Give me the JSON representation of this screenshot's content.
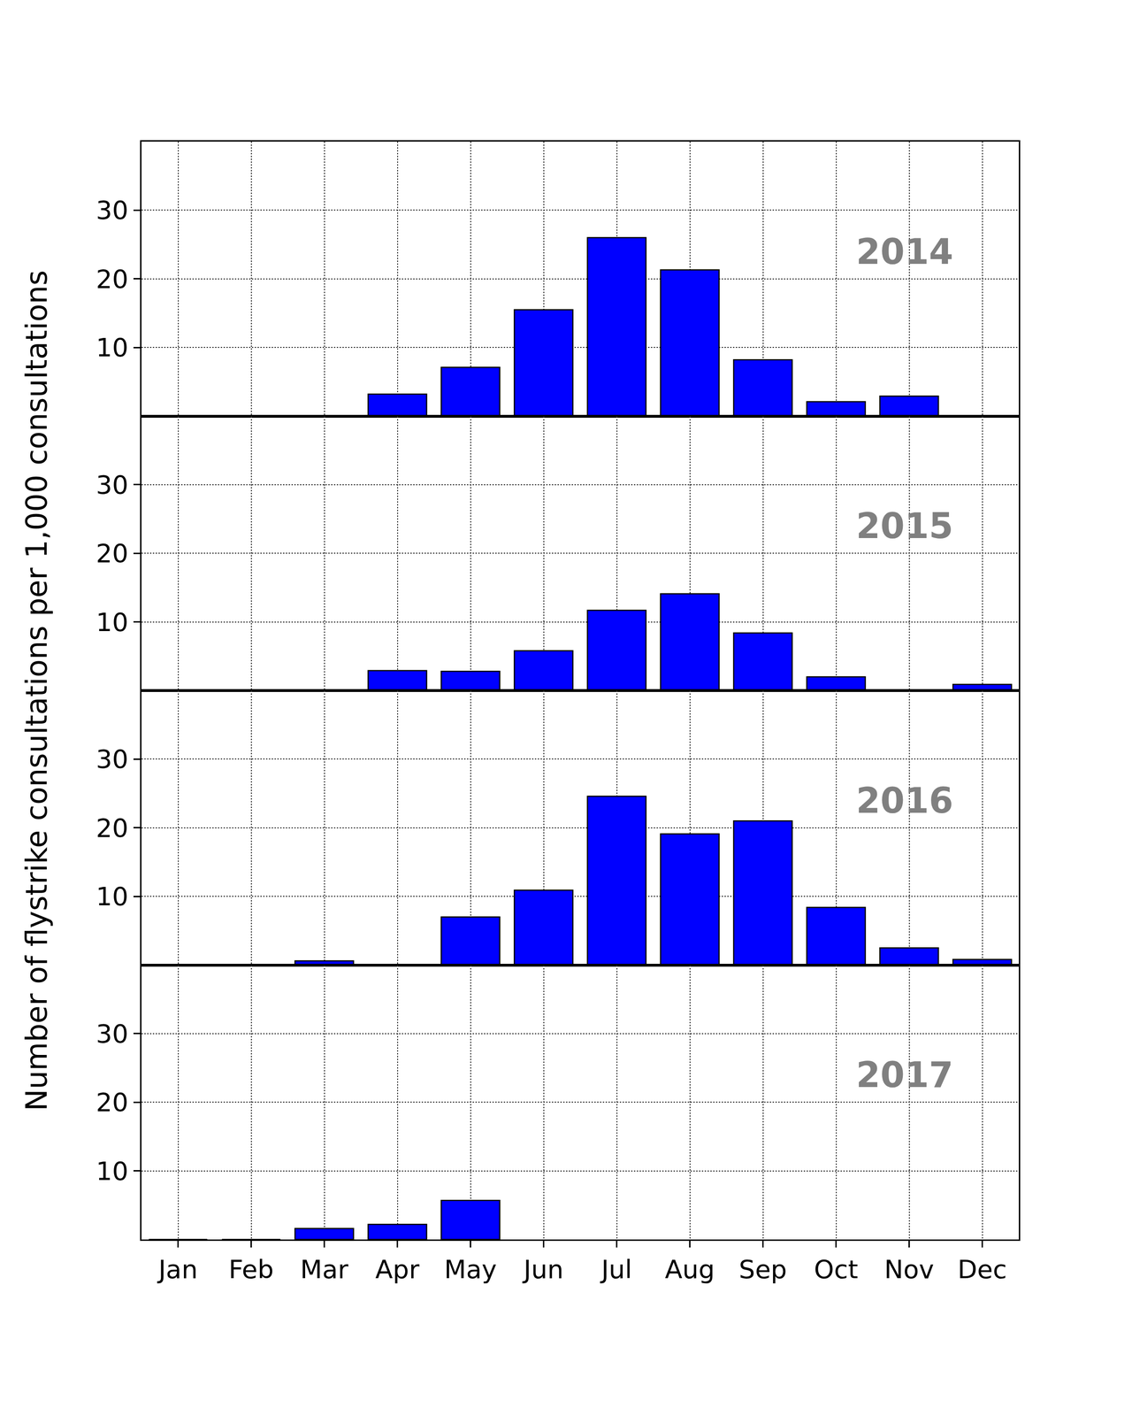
{
  "chart_data": [
    {
      "type": "bar",
      "annotation": "2014",
      "y_label": "Number of flystrike consultations per 1,000 consultations",
      "categories": [
        "Jan",
        "Feb",
        "Mar",
        "Apr",
        "May",
        "Jun",
        "Jul",
        "Aug",
        "Sep",
        "Oct",
        "Nov",
        "Dec"
      ],
      "values": [
        0,
        0,
        0,
        3.2,
        7.1,
        15.5,
        26.0,
        21.3,
        8.2,
        2.1,
        2.9,
        0
      ],
      "color": "#0000ff",
      "ylim": [
        0,
        40
      ],
      "yticks": [
        10,
        20,
        30
      ],
      "grid": true,
      "tick_labels": "y"
    },
    {
      "type": "bar",
      "annotation": "2015",
      "categories": [
        "Jan",
        "Feb",
        "Mar",
        "Apr",
        "May",
        "Jun",
        "Jul",
        "Aug",
        "Sep",
        "Oct",
        "Nov",
        "Dec"
      ],
      "values": [
        0,
        0,
        0,
        2.9,
        2.8,
        5.8,
        11.7,
        14.1,
        8.4,
        2.0,
        0,
        0.9
      ],
      "color": "#0000ff",
      "ylim": [
        0,
        40
      ],
      "yticks": [
        10,
        20,
        30
      ],
      "grid": true,
      "tick_labels": "y"
    },
    {
      "type": "bar",
      "annotation": "2016",
      "categories": [
        "Jan",
        "Feb",
        "Mar",
        "Apr",
        "May",
        "Jun",
        "Jul",
        "Aug",
        "Sep",
        "Oct",
        "Nov",
        "Dec"
      ],
      "values": [
        0,
        0,
        0.6,
        0,
        7.0,
        10.9,
        24.6,
        19.1,
        21.0,
        8.4,
        2.5,
        0.8
      ],
      "color": "#0000ff",
      "ylim": [
        0,
        40
      ],
      "yticks": [
        10,
        20,
        30
      ],
      "grid": true,
      "tick_labels": "y"
    },
    {
      "type": "bar",
      "annotation": "2017",
      "categories": [
        "Jan",
        "Feb",
        "Mar",
        "Apr",
        "May",
        "Jun",
        "Jul",
        "Aug",
        "Sep",
        "Oct",
        "Nov",
        "Dec"
      ],
      "values": [
        0,
        0,
        1.6,
        2.2,
        5.7,
        null,
        null,
        null,
        null,
        null,
        null,
        null
      ],
      "color": "#0000ff",
      "ylim": [
        0,
        40
      ],
      "yticks": [
        10,
        20,
        30
      ],
      "grid": true
    }
  ]
}
